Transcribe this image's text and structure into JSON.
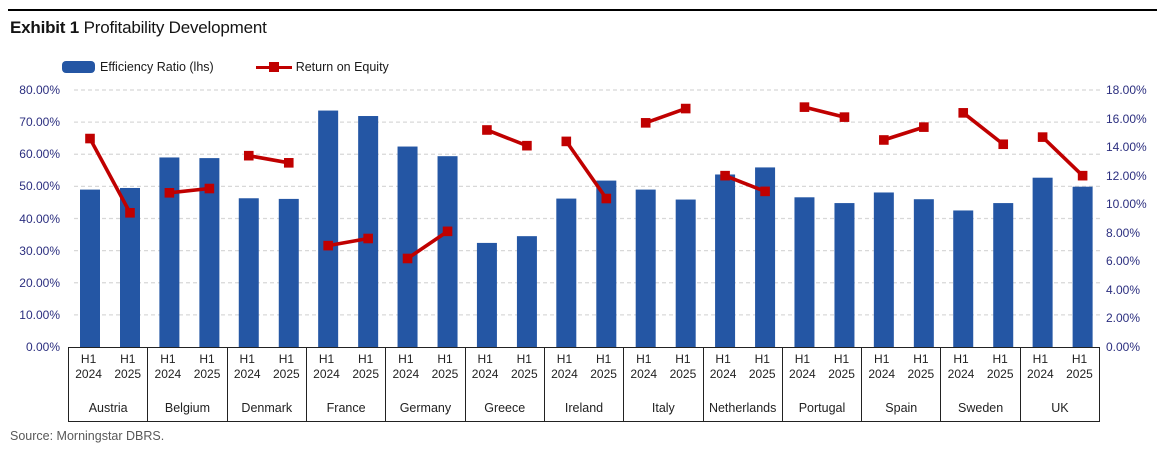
{
  "header": {
    "exhibit_label": "Exhibit 1",
    "title": "Profitability Development"
  },
  "legend": [
    {
      "label": "Efficiency Ratio (lhs)",
      "swatch": "bar"
    },
    {
      "label": "Return on Equity",
      "swatch": "line-marker"
    }
  ],
  "source": "Source: Morningstar DBRS.",
  "colors": {
    "bar": "#2456A4",
    "line": "#C00000",
    "gridline": "#D8D8D8",
    "axis_label": "#2B2E7F",
    "table_border": "#222222",
    "title_text": "#141414",
    "source_text": "#595959"
  },
  "chart_data": {
    "type": "bar",
    "subtype": "grouped bars with overlaid line segments per category (dual axis)",
    "categories": [
      "Austria",
      "Belgium",
      "Denmark",
      "France",
      "Germany",
      "Greece",
      "Ireland",
      "Italy",
      "Netherlands",
      "Portugal",
      "Spain",
      "Sweden",
      "UK"
    ],
    "periods": [
      "H1 2024",
      "H1 2025"
    ],
    "series": [
      {
        "name": "Efficiency Ratio (lhs)",
        "type": "bar",
        "axis": "left",
        "values": [
          [
            49.0,
            49.5
          ],
          [
            59.0,
            58.8
          ],
          [
            46.3,
            46.1
          ],
          [
            73.6,
            71.9
          ],
          [
            62.4,
            59.4
          ],
          [
            32.4,
            34.5
          ],
          [
            46.2,
            51.8
          ],
          [
            49.0,
            45.9
          ],
          [
            53.7,
            55.9
          ],
          [
            46.6,
            44.8
          ],
          [
            48.1,
            46.0
          ],
          [
            42.5,
            44.8
          ],
          [
            52.7,
            49.9
          ]
        ]
      },
      {
        "name": "Return on Equity",
        "type": "line",
        "axis": "right",
        "values": [
          [
            14.6,
            9.4
          ],
          [
            10.8,
            11.1
          ],
          [
            13.4,
            12.9
          ],
          [
            7.1,
            7.6
          ],
          [
            6.2,
            8.1
          ],
          [
            15.2,
            14.1
          ],
          [
            14.4,
            10.4
          ],
          [
            15.7,
            16.7
          ],
          [
            12.0,
            10.9
          ],
          [
            16.8,
            16.1
          ],
          [
            14.5,
            15.4
          ],
          [
            16.4,
            14.2
          ],
          [
            14.7,
            12.0
          ]
        ]
      }
    ],
    "left_axis": {
      "min": 0,
      "max": 80,
      "step": 10,
      "tick_format": "0.00%",
      "tick_labels": [
        "0.00%",
        "10.00%",
        "20.00%",
        "30.00%",
        "40.00%",
        "50.00%",
        "60.00%",
        "70.00%",
        "80.00%"
      ]
    },
    "right_axis": {
      "min": 0,
      "max": 18,
      "step": 2,
      "tick_format": "0.00%",
      "tick_labels": [
        "0.00%",
        "2.00%",
        "4.00%",
        "6.00%",
        "8.00%",
        "10.00%",
        "12.00%",
        "14.00%",
        "16.00%",
        "18.00%"
      ]
    },
    "grid": "horizontal dashed, left-axis steps only",
    "legend_position": "top-left"
  }
}
